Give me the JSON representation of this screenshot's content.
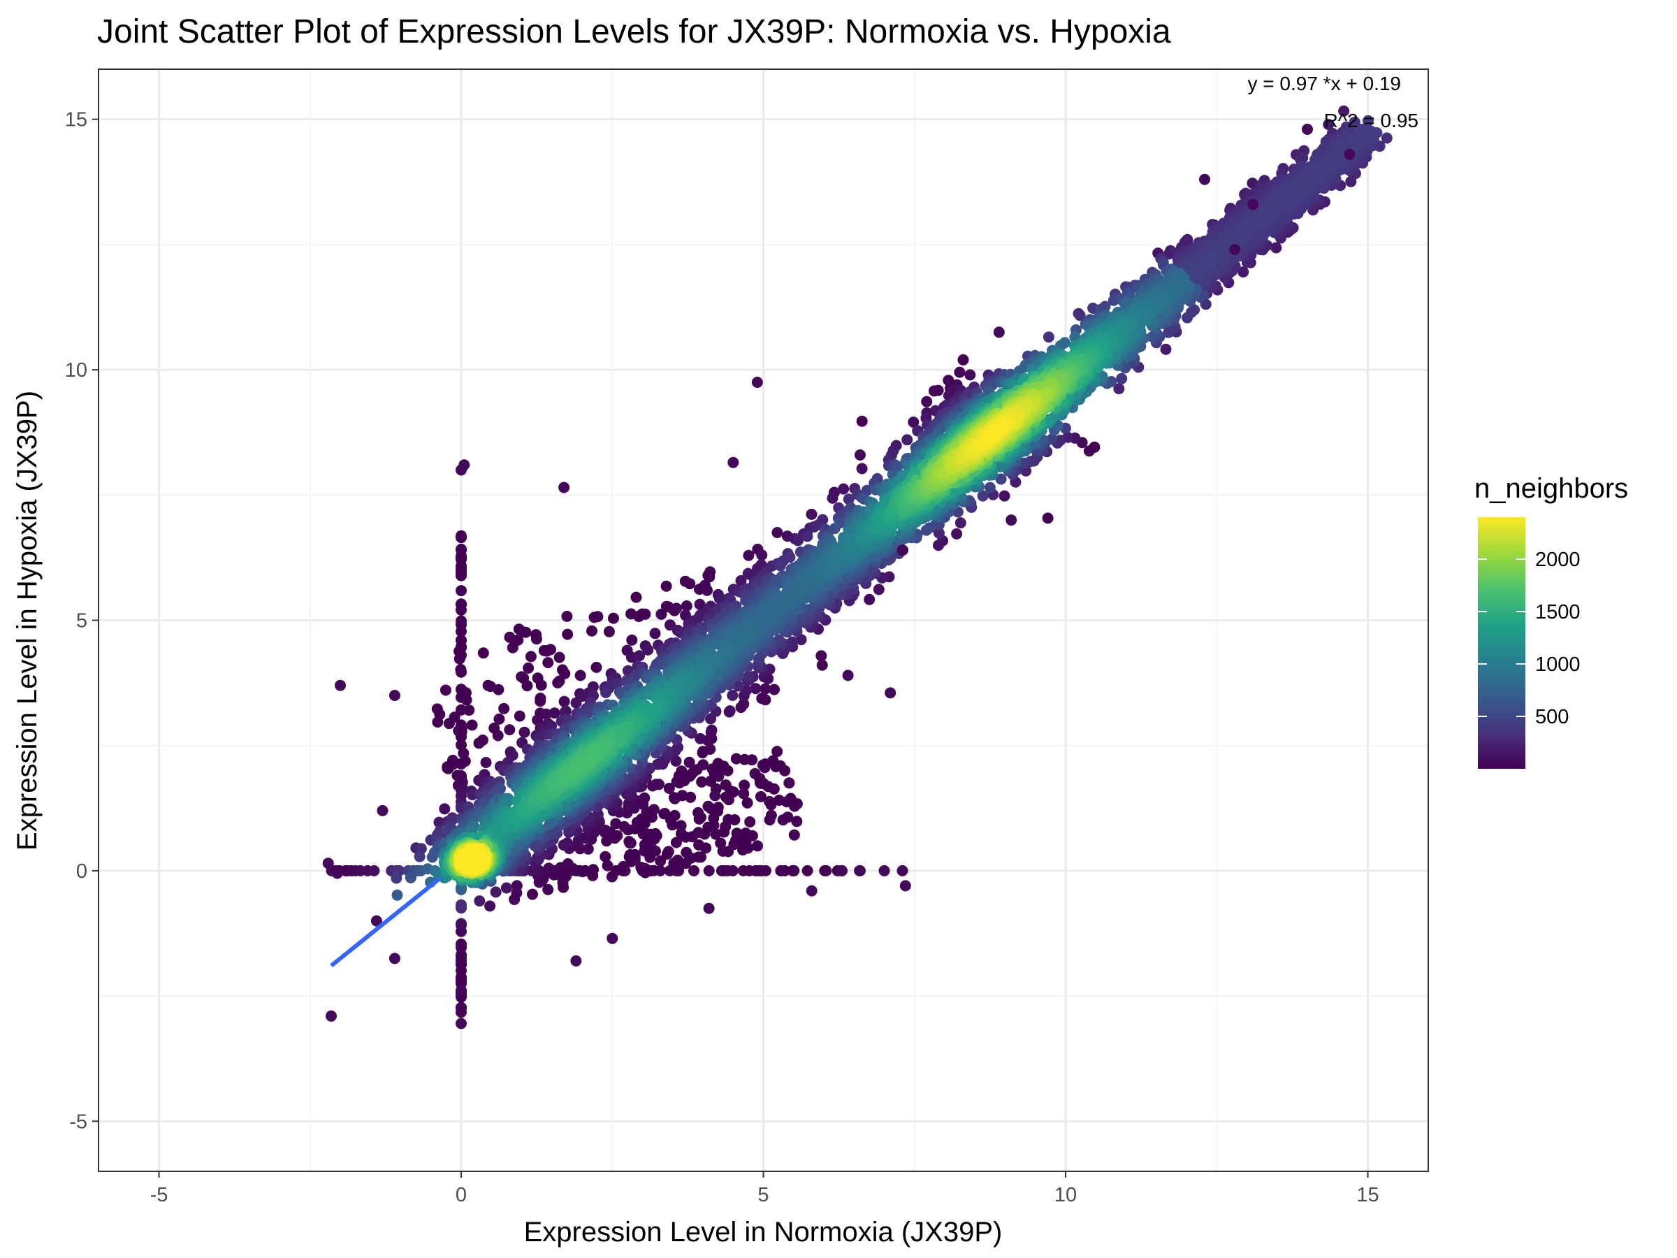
{
  "chart_data": {
    "type": "scatter",
    "title": "Joint Scatter Plot of Expression Levels for JX39P: Normoxia vs. Hypoxia",
    "xlabel": "Expression Level in Normoxia (JX39P)",
    "ylabel": "Expression Level in Hypoxia (JX39P)",
    "xlim": [
      -6.0,
      16.0
    ],
    "ylim": [
      -6.0,
      16.0
    ],
    "x_ticks": [
      -5,
      0,
      5,
      10,
      15
    ],
    "y_ticks": [
      -5,
      0,
      5,
      10,
      15
    ],
    "x_tick_labels": [
      "-5",
      "0",
      "5",
      "10",
      "15"
    ],
    "y_tick_labels": [
      "-5",
      "0",
      "5",
      "10",
      "15"
    ],
    "grid": true,
    "annotations": {
      "equation": "y = 0.97 *x + 0.19",
      "r_squared": "R^2 = 0.95"
    },
    "fit_line": {
      "slope": 0.97,
      "intercept": 0.19,
      "x_range": [
        -2.15,
        15.0
      ],
      "color": "#3366FF"
    },
    "colorbar": {
      "title": "n_neighbors",
      "ticks": [
        500,
        1000,
        1500,
        2000
      ],
      "tick_labels": [
        "500",
        "1000",
        "1500",
        "2000"
      ],
      "range": [
        0,
        2400
      ],
      "palette": "viridis"
    },
    "outlier_points": [
      {
        "x": 4.9,
        "y": 9.75
      },
      {
        "x": 0.05,
        "y": 8.1
      },
      {
        "x": 0.0,
        "y": 8.0
      },
      {
        "x": 1.7,
        "y": 7.65
      },
      {
        "x": 4.5,
        "y": 8.15
      },
      {
        "x": -2.0,
        "y": 3.7
      },
      {
        "x": -2.15,
        "y": -2.9
      },
      {
        "x": 0.0,
        "y": -3.05
      },
      {
        "x": 0.0,
        "y": -2.4
      },
      {
        "x": -2.2,
        "y": 0.15
      },
      {
        "x": -2.05,
        "y": -0.05
      },
      {
        "x": 6.3,
        "y": 0.0
      },
      {
        "x": 6.6,
        "y": 0.0
      },
      {
        "x": 7.3,
        "y": 0.0
      },
      {
        "x": 7.35,
        "y": -0.3
      },
      {
        "x": 7.0,
        "y": 0.0
      },
      {
        "x": 5.8,
        "y": -0.4
      },
      {
        "x": 8.9,
        "y": 10.75
      },
      {
        "x": 12.3,
        "y": 13.8
      },
      {
        "x": 14.0,
        "y": 14.8
      },
      {
        "x": 1.9,
        "y": -1.8
      },
      {
        "x": 2.5,
        "y": -1.35
      },
      {
        "x": 4.1,
        "y": -0.75
      },
      {
        "x": 7.3,
        "y": 6.4
      },
      {
        "x": 9.1,
        "y": 7.0
      },
      {
        "x": 13.1,
        "y": 13.3
      },
      {
        "x": 12.8,
        "y": 12.4
      },
      {
        "x": 14.7,
        "y": 14.3
      },
      {
        "x": 6.6,
        "y": 8.3
      },
      {
        "x": 6.4,
        "y": 3.9
      },
      {
        "x": 7.1,
        "y": 3.55
      },
      {
        "x": -1.3,
        "y": 1.2
      },
      {
        "x": -1.1,
        "y": 3.5
      },
      {
        "x": -1.4,
        "y": -1.0
      },
      {
        "x": -1.1,
        "y": -1.75
      },
      {
        "x": 4.2,
        "y": 1.5
      }
    ],
    "density_structure": {
      "main_band": {
        "x_range": [
          0.0,
          15.0
        ],
        "slope": 0.97,
        "intercept": 0.19
      },
      "dense_clusters": [
        {
          "x": 1.9,
          "y": 1.9,
          "level": 1500
        },
        {
          "x": 8.6,
          "y": 8.8,
          "level": 2300
        },
        {
          "x": 0.2,
          "y": 0.2,
          "level": 2100
        }
      ],
      "axis_stripes": [
        {
          "along": "y",
          "at_x": 0.0,
          "range": [
            -3.1,
            6.7
          ]
        },
        {
          "along": "x",
          "at_y": 0.0,
          "range": [
            -2.2,
            6.6
          ]
        }
      ]
    }
  }
}
